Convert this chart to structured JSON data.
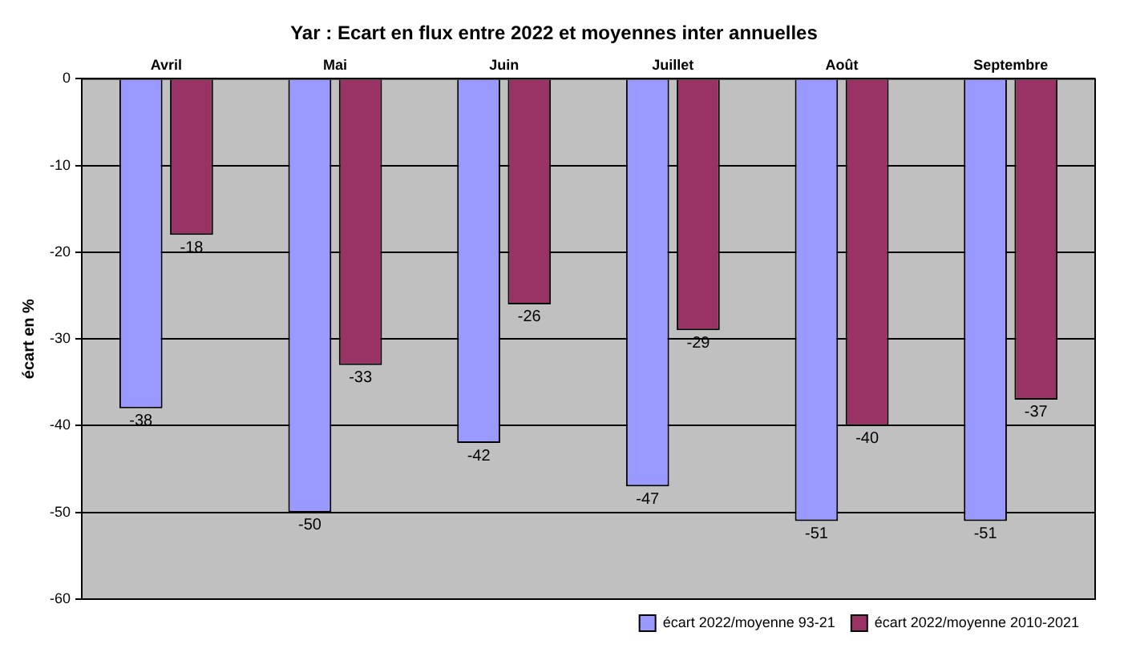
{
  "chart_data": {
    "type": "bar",
    "title": "Yar : Ecart en flux entre 2022 et moyennes inter annuelles",
    "ylabel": "écart en %",
    "categories": [
      "Avril",
      "Mai",
      "Juin",
      "Juillet",
      "Août",
      "Septembre"
    ],
    "series": [
      {
        "name": "écart 2022/moyenne 93-21",
        "color": "#9999ff",
        "values": [
          -38,
          -50,
          -42,
          -47,
          -51,
          -51
        ]
      },
      {
        "name": "écart 2022/moyenne 2010-2021",
        "color": "#993366",
        "values": [
          -18,
          -33,
          -26,
          -29,
          -40,
          -37
        ]
      }
    ],
    "ylim": [
      -60,
      0
    ],
    "yticks": [
      -60,
      -50,
      -40,
      -30,
      -20,
      -10,
      0
    ],
    "grid": "y",
    "legend": "bottom right",
    "data_labels": true
  }
}
